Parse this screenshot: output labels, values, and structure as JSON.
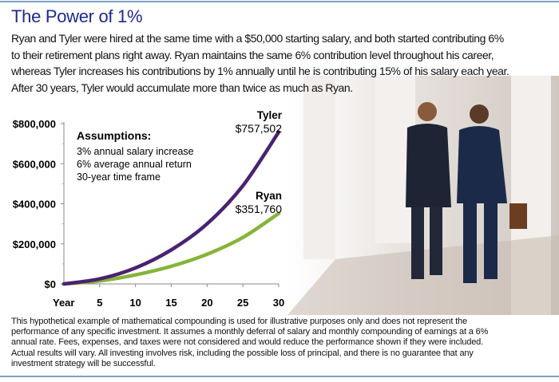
{
  "title": "The Power of 1%",
  "intro_lines": [
    "Ryan and Tyler were hired at the same time with a $50,000 starting salary, and both started contributing 6%",
    "to their retirement plans right away. Ryan maintains the same 6% contribution level throughout his career,",
    "whereas Tyler increases his contributions by 1% annually until he is contributing 15% of his salary each year.",
    "After 30 years, Tyler would accumulate more than twice as much as Ryan."
  ],
  "footnote_lines": [
    "This hypothetical example of mathematical compounding is used for illustrative purposes only and does not represent the",
    "performance of any specific investment. It assumes a monthly deferral of salary and monthly compounding of earnings at a 6%",
    "annual rate. Fees, expenses, and taxes were not considered and would reduce the performance shown if they were included.",
    "Actual results will vary. All investing involves risk, including the possible loss of principal, and there is no guarantee that any",
    "investment strategy will be successful."
  ],
  "chart_data": {
    "type": "line",
    "xlabel": "Year",
    "x": [
      0,
      5,
      10,
      15,
      20,
      25,
      30
    ],
    "x_ticks": [
      "5",
      "10",
      "15",
      "20",
      "25",
      "30"
    ],
    "y_ticks": [
      "$0",
      "$200,000",
      "$400,000",
      "$600,000",
      "$800,000"
    ],
    "xlim": [
      0,
      30
    ],
    "ylim": [
      0,
      800000
    ],
    "grid": false,
    "assumptions": {
      "heading": "Assumptions:",
      "items": [
        "3% annual salary increase",
        "6% average annual return",
        "30-year time frame"
      ]
    },
    "series": [
      {
        "name": "Tyler",
        "end_label": "$757,502",
        "color": "#4a2272",
        "values": [
          0,
          25000,
          80000,
          170000,
          300000,
          490000,
          757502
        ]
      },
      {
        "name": "Ryan",
        "end_label": "$351,760",
        "color": "#86b43a",
        "values": [
          0,
          15000,
          45000,
          88000,
          148000,
          232000,
          351760
        ]
      }
    ]
  }
}
